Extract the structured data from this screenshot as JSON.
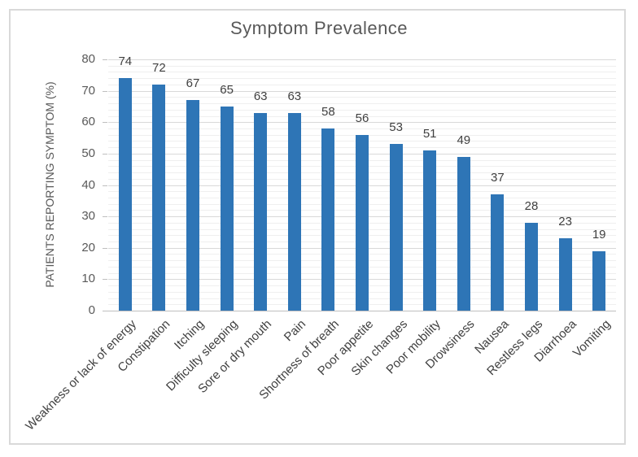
{
  "frame": {
    "border_color": "#D9D9D9",
    "background": "#FFFFFF"
  },
  "chart_data": {
    "type": "bar",
    "title": "Symptom Prevalence",
    "xlabel": "",
    "ylabel": "PATIENTS REPORTING SYMPTOM (%)",
    "categories": [
      "Weakness or lack of energy",
      "Constipation",
      "Itching",
      "Difficulty sleeping",
      "Sore or dry mouth",
      "Pain",
      "Shortness of breath",
      "Poor appetite",
      "Skin changes",
      "Poor mobility",
      "Drowsiness",
      "Nausea",
      "Restless legs",
      "Diarrhoea",
      "Vomiting"
    ],
    "values": [
      74,
      72,
      67,
      65,
      63,
      63,
      58,
      56,
      53,
      51,
      49,
      37,
      28,
      23,
      19
    ],
    "data_labels": "outside-end",
    "ylim": [
      0,
      80
    ],
    "y_ticks": [
      0,
      10,
      20,
      30,
      40,
      50,
      60,
      70,
      80
    ],
    "y_minor_step": 2,
    "grid": {
      "major_horizontal": true,
      "minor_horizontal": true,
      "vertical": false
    },
    "legend": "none",
    "category_label_rotation_deg": 45,
    "colors": {
      "bar": "#2E75B6",
      "major_grid": "#D9D9D9",
      "minor_grid": "#EFEFEF",
      "axis_line": "#BFBFBF",
      "title_text": "#595959",
      "tick_text": "#595959",
      "label_text": "#404040"
    }
  }
}
